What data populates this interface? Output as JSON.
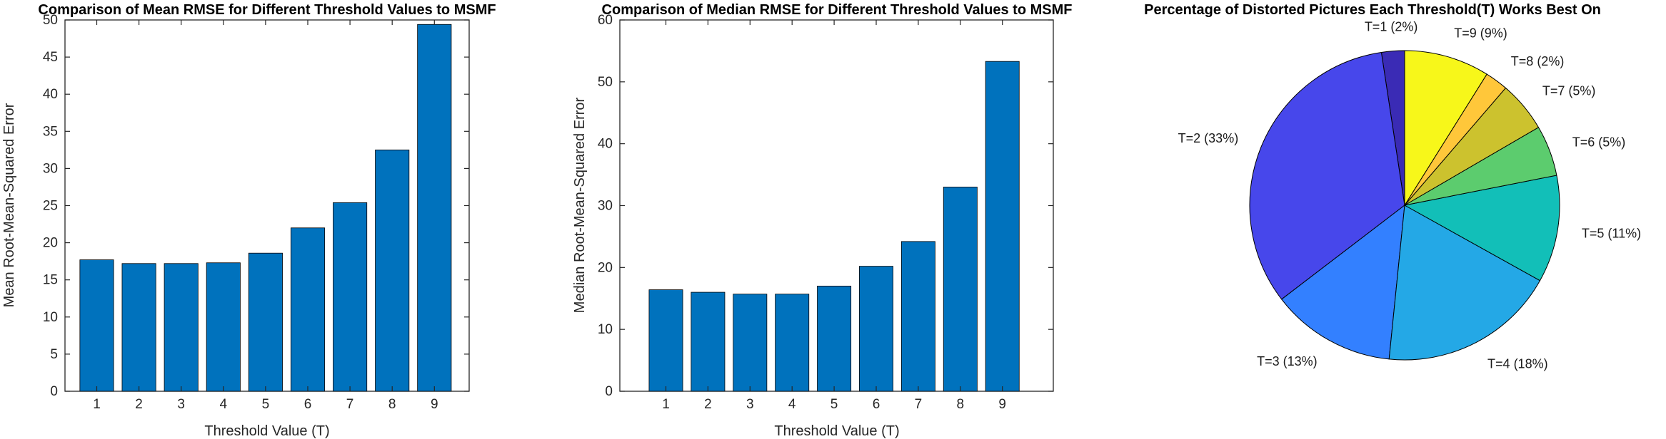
{
  "chart_data": [
    {
      "type": "bar",
      "title": "Comparison of Mean RMSE for Different Threshold Values to MSMF",
      "xlabel": "Threshold Value (T)",
      "ylabel": "Mean Root-Mean-Squared Error",
      "categories": [
        "1",
        "2",
        "3",
        "4",
        "5",
        "6",
        "7",
        "8",
        "9"
      ],
      "values": [
        17.7,
        17.2,
        17.2,
        17.3,
        18.6,
        22.0,
        25.4,
        32.5,
        49.4
      ],
      "ylim": [
        0,
        50
      ],
      "yticks": [
        "0",
        "5",
        "10",
        "15",
        "20",
        "25",
        "30",
        "35",
        "40",
        "45",
        "50"
      ],
      "bar_color": "#0072BD",
      "grid": false
    },
    {
      "type": "bar",
      "title": "Comparison of Median RMSE for Different Threshold Values to MSMF",
      "xlabel": "Threshold Value (T)",
      "ylabel": "Median Root-Mean-Squared Error",
      "categories": [
        "1",
        "2",
        "3",
        "4",
        "5",
        "6",
        "7",
        "8",
        "9"
      ],
      "values": [
        16.4,
        16.0,
        15.7,
        15.7,
        17.0,
        20.2,
        24.2,
        33.0,
        53.3
      ],
      "ylim": [
        0,
        60
      ],
      "yticks": [
        "0",
        "10",
        "20",
        "30",
        "40",
        "50",
        "60"
      ],
      "bar_color": "#0072BD",
      "grid": false
    },
    {
      "type": "pie",
      "title": "Percentage of Distorted Pictures Each Threshold(T) Works Best On",
      "slices": [
        {
          "label": "T=1 (2%)",
          "value": 2.4,
          "color": "#3A2BB5"
        },
        {
          "label": "T=2 (33%)",
          "value": 33.0,
          "color": "#4747EB"
        },
        {
          "label": "T=3 (13%)",
          "value": 13.0,
          "color": "#3380FF"
        },
        {
          "label": "T=4 (18%)",
          "value": 18.5,
          "color": "#24A8E6"
        },
        {
          "label": "T=5 (11%)",
          "value": 11.2,
          "color": "#12BFB8"
        },
        {
          "label": "T=6 (5%)",
          "value": 5.3,
          "color": "#5CCC6E"
        },
        {
          "label": "T=7 (5%)",
          "value": 5.3,
          "color": "#CCC22E"
        },
        {
          "label": "T=8 (2%)",
          "value": 2.4,
          "color": "#FFC73A"
        },
        {
          "label": "T=9 (9%)",
          "value": 8.9,
          "color": "#F7F71A"
        }
      ]
    }
  ]
}
